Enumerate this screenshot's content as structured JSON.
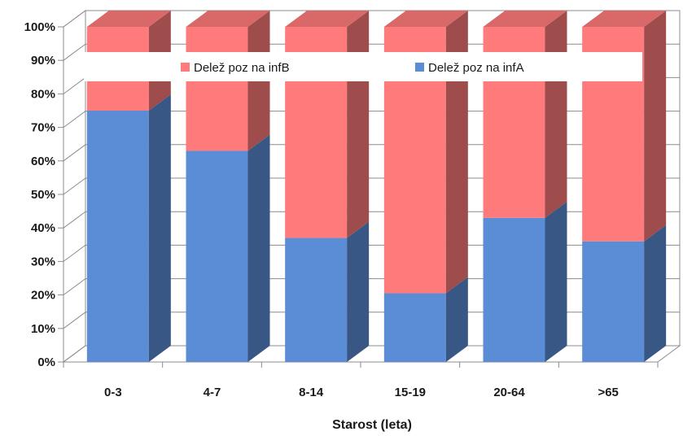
{
  "chart_data": {
    "type": "bar",
    "stacked": true,
    "three_d": true,
    "categories": [
      "0-3",
      "4-7",
      "8-14",
      "15-19",
      "20-64",
      ">65"
    ],
    "series": [
      {
        "name": "Delež poz na infA",
        "color": "#5a8dd6",
        "values": [
          75,
          63,
          37,
          20.5,
          43,
          36
        ]
      },
      {
        "name": "Delež poz na infB",
        "color": "#ff7b7b",
        "values": [
          25,
          37,
          63,
          79.5,
          57,
          64
        ]
      }
    ],
    "y_ticks": [
      "0%",
      "10%",
      "20%",
      "30%",
      "40%",
      "50%",
      "60%",
      "70%",
      "80%",
      "90%",
      "100%"
    ],
    "ylim": [
      0,
      100
    ],
    "xlabel": "Starost (leta)",
    "ylabel": "",
    "title": "",
    "grid": true,
    "legend_position": "top"
  }
}
